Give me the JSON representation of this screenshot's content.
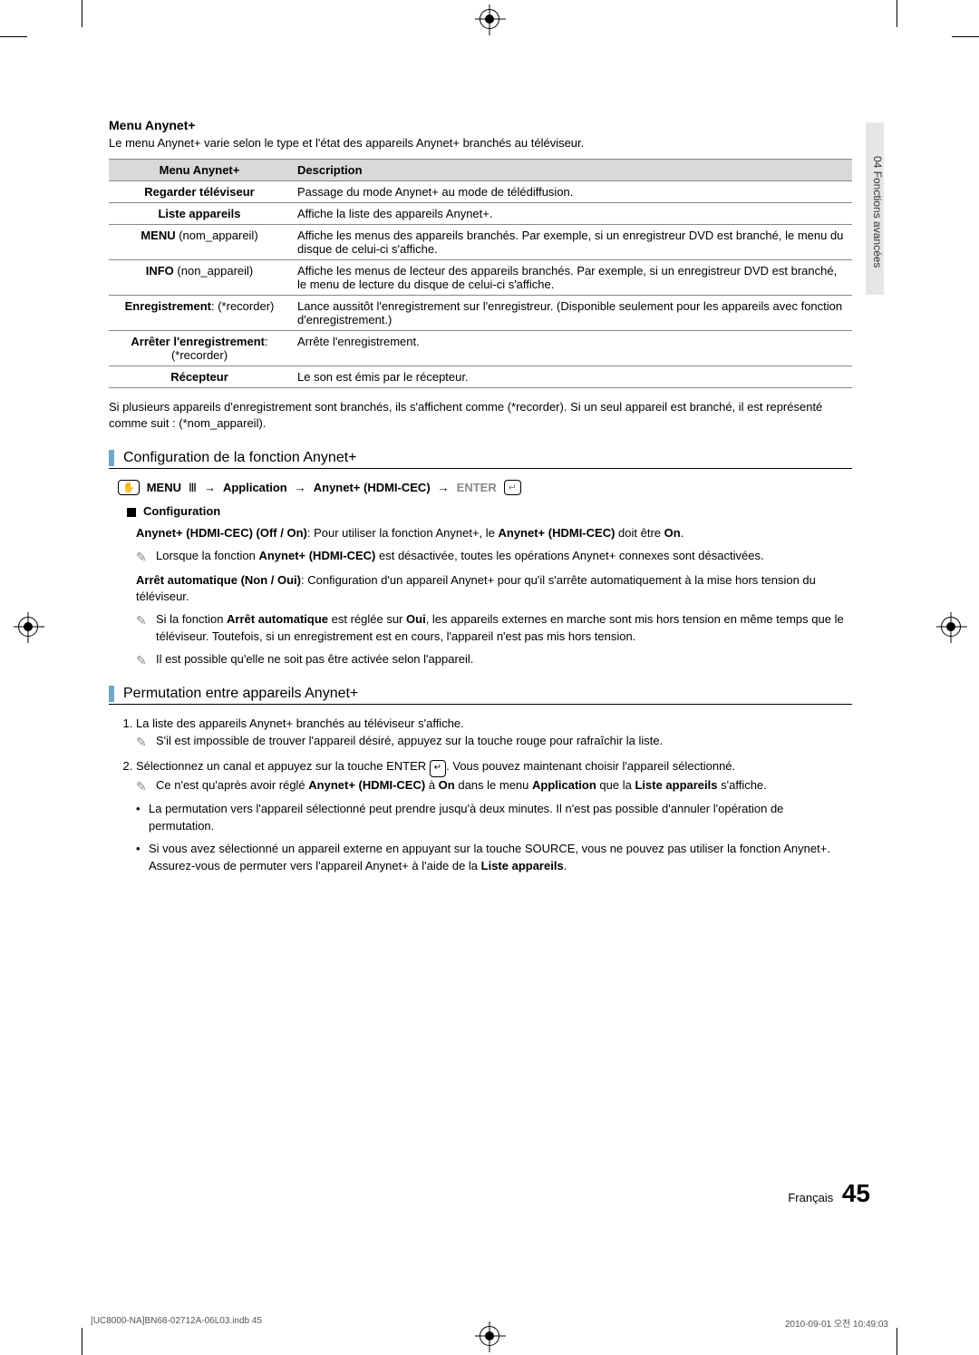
{
  "sideTab": "04  Fonctions avancées",
  "header": {
    "title": "Menu Anynet+",
    "intro": "Le menu Anynet+ varie selon le type et l'état des appareils Anynet+ branchés au téléviseur."
  },
  "table": {
    "columns": [
      "Menu Anynet+",
      "Description"
    ],
    "rows": [
      {
        "c1": "Regarder téléviseur",
        "c1bold": true,
        "c2": "Passage du mode Anynet+ au mode de télédiffusion."
      },
      {
        "c1": "Liste appareils",
        "c1bold": true,
        "c2": "Affiche la liste des appareils Anynet+."
      },
      {
        "c1html": "<span class='bold'>MENU</span> (nom_appareil)",
        "c2": "Affiche les menus des appareils branchés. Par exemple, si un enregistreur DVD est branché, le menu du disque de celui-ci s'affiche."
      },
      {
        "c1html": "<span class='bold'>INFO</span> (non_appareil)",
        "c2": "Affiche les menus de lecteur des appareils branchés. Par exemple, si un enregistreur DVD est branché, le menu de lecture du disque de celui-ci s'affiche."
      },
      {
        "c1html": "<span class='bold'>Enregistrement</span>: (*recorder)",
        "c2": "Lance aussitôt l'enregistrement sur l'enregistreur. (Disponible seulement pour les appareils avec fonction d'enregistrement.)"
      },
      {
        "c1html": "<span class='bold'>Arrêter l'enregistrement</span>:<br>(*recorder)",
        "c2": "Arrête l'enregistrement."
      },
      {
        "c1": "Récepteur",
        "c1bold": true,
        "c2": "Le son est émis par le récepteur."
      }
    ]
  },
  "postTableNote": "Si plusieurs appareils d'enregistrement sont branchés, ils s'affichent comme (*recorder). Si un seul appareil est branché, il est représenté comme suit : (*nom_appareil).",
  "section1": {
    "title": "Configuration de la fonction Anynet+",
    "pathParts": {
      "menu": "MENU",
      "arrow": "→",
      "p1": "Application",
      "p2": "Anynet+ (HDMI-CEC)",
      "enter": "ENTER"
    },
    "configLabel": "Configuration",
    "line1": "<span class='bold'>Anynet+ (HDMI-CEC) (Off / On)</span>: Pour utiliser la fonction Anynet+, le <span class='bold'>Anynet+ (HDMI-CEC)</span> doit être <span class='bold'>On</span>.",
    "note1": "Lorsque la fonction <span class='bold'>Anynet+ (HDMI-CEC)</span> est désactivée, toutes les opérations Anynet+ connexes sont désactivées.",
    "line2": "<span class='bold'>Arrêt automatique (Non / Oui)</span>: Configuration d'un appareil Anynet+ pour qu'il s'arrête automatiquement à la mise hors tension du téléviseur.",
    "note2": "Si la fonction <span class='bold'>Arrêt automatique</span> est réglée sur <span class='bold'>Oui</span>, les appareils externes en marche sont mis hors tension en même temps que le téléviseur. Toutefois, si un enregistrement est en cours, l'appareil n'est pas mis hors tension.",
    "note3": "Il est possible qu'elle ne soit pas être activée selon l'appareil."
  },
  "section2": {
    "title": "Permutation entre appareils Anynet+",
    "step1": "La liste des appareils Anynet+ branchés au téléviseur s'affiche.",
    "step1note": "S'il est impossible de trouver l'appareil désiré, appuyez sur la touche rouge pour rafraîchir la liste.",
    "step2a": "Sélectionnez un canal et appuyez sur la touche ENTER ",
    "step2b": ". Vous pouvez maintenant choisir l'appareil sélectionné.",
    "step2note": "Ce n'est qu'après avoir réglé <span class='bold'>Anynet+ (HDMI-CEC)</span> à <span class='bold'>On</span> dans le menu <span class='bold'>Application</span> que la <span class='bold'>Liste appareils</span> s'affiche.",
    "bullet1": "La permutation vers l'appareil sélectionné peut prendre jusqu'à deux minutes. Il n'est pas possible d'annuler l'opération de permutation.",
    "bullet2": "Si vous avez sélectionné un appareil externe en appuyant sur la touche SOURCE, vous ne pouvez pas utiliser la fonction Anynet+. Assurez-vous de permuter vers l'appareil Anynet+ à l'aide de la <span class='bold'>Liste appareils</span>."
  },
  "footer": {
    "lang": "Français",
    "page": "45"
  },
  "printFooter": {
    "left": "[UC8000-NA]BN68-02712A-06L03.indb   45",
    "right": "2010-09-01   오전 10:49:03"
  },
  "colors": {
    "tableHeaderBg": "#d9d9d9",
    "sectionBar": "#6fa8c9",
    "sideTabBg": "#e6e6e6",
    "borderGray": "#888888"
  }
}
